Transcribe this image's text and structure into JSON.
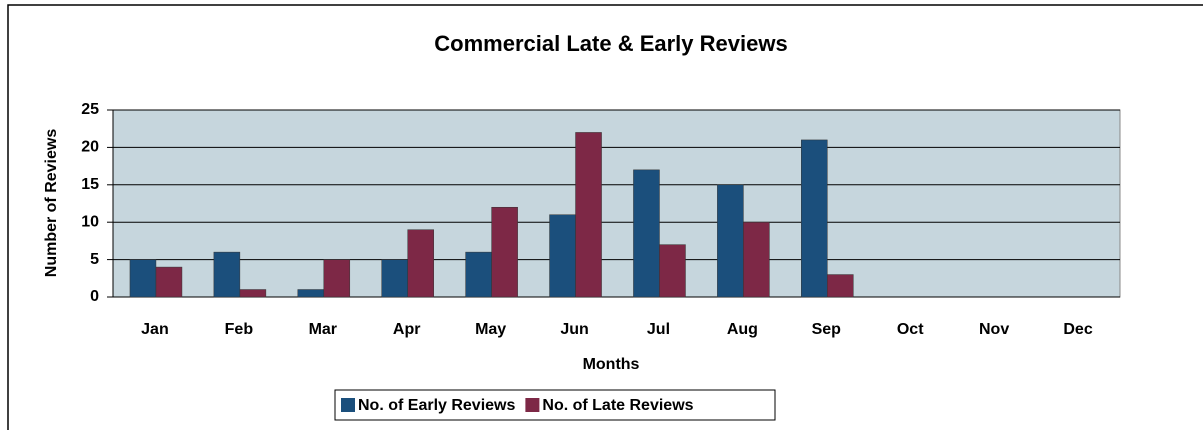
{
  "chart_data": {
    "type": "bar",
    "title": "Commercial Late & Early Reviews",
    "x_label": "Months",
    "y_label": "Number of Reviews",
    "categories": [
      "Jan",
      "Feb",
      "Mar",
      "Apr",
      "May",
      "Jun",
      "Jul",
      "Aug",
      "Sep",
      "Oct",
      "Nov",
      "Dec"
    ],
    "series": [
      {
        "name": "No. of Early Reviews",
        "color": "#1b4f7c",
        "values": [
          5,
          6,
          1,
          5,
          6,
          11,
          17,
          15,
          21,
          null,
          null,
          null
        ]
      },
      {
        "name": "No. of Late Reviews",
        "color": "#7d2846",
        "values": [
          4,
          1,
          5,
          9,
          12,
          22,
          7,
          10,
          3,
          null,
          null,
          null
        ]
      }
    ],
    "ylim": [
      0,
      25
    ],
    "yticks": [
      0,
      5,
      10,
      15,
      20,
      25
    ],
    "grid": true,
    "legend": "bottom"
  }
}
